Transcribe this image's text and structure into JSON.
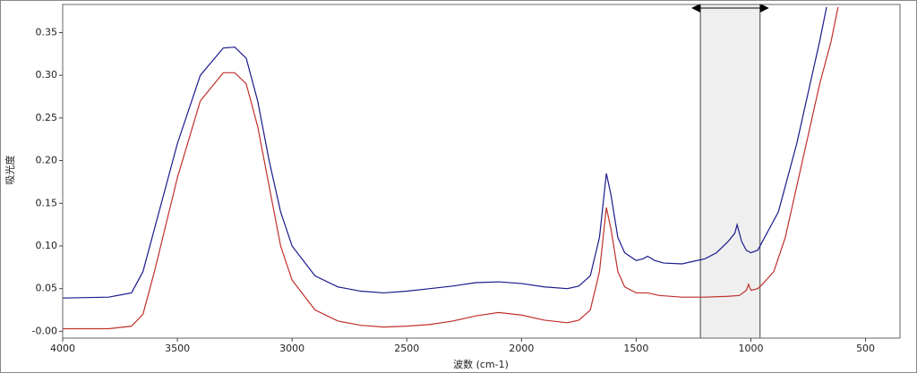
{
  "chart_data": {
    "type": "line",
    "y_label": "吸光度",
    "x_label": "波数 (cm-1)",
    "xlim": [
      4000,
      350
    ],
    "ylim": [
      -0.008,
      0.383
    ],
    "xticks": [
      4000,
      3500,
      3000,
      2500,
      2000,
      1500,
      1000,
      500
    ],
    "yticks": [
      {
        "value": 0,
        "label": "-0.00"
      },
      0.05,
      {
        "value": 0.1,
        "label": "0.10"
      },
      0.15,
      {
        "value": 0.2,
        "label": "0.20"
      },
      0.25,
      {
        "value": 0.3,
        "label": "0.30"
      },
      0.35
    ],
    "selection": [
      1220,
      960
    ],
    "series": [
      {
        "color": "#1a1a8c",
        "x": [
          4000,
          3800,
          3700,
          3650,
          3600,
          3500,
          3400,
          3300,
          3250,
          3200,
          3150,
          3100,
          3050,
          3000,
          2900,
          2800,
          2700,
          2600,
          2500,
          2400,
          2300,
          2200,
          2100,
          2000,
          1900,
          1800,
          1750,
          1700,
          1660,
          1630,
          1610,
          1580,
          1550,
          1500,
          1470,
          1450,
          1420,
          1380,
          1300,
          1250,
          1200,
          1150,
          1100,
          1070,
          1060,
          1040,
          1020,
          1000,
          970,
          950,
          920,
          880,
          850,
          800,
          750,
          700,
          670
        ],
        "values": [
          0.039,
          0.04,
          0.045,
          0.07,
          0.12,
          0.22,
          0.3,
          0.332,
          0.333,
          0.32,
          0.27,
          0.2,
          0.14,
          0.1,
          0.065,
          0.052,
          0.047,
          0.045,
          0.047,
          0.05,
          0.053,
          0.057,
          0.058,
          0.056,
          0.052,
          0.05,
          0.053,
          0.065,
          0.11,
          0.185,
          0.16,
          0.11,
          0.092,
          0.083,
          0.085,
          0.088,
          0.083,
          0.08,
          0.079,
          0.082,
          0.085,
          0.092,
          0.105,
          0.115,
          0.125,
          0.105,
          0.095,
          0.092,
          0.095,
          0.105,
          0.12,
          0.14,
          0.17,
          0.22,
          0.28,
          0.34,
          0.38
        ]
      },
      {
        "color": "#c0302a",
        "x": [
          4000,
          3800,
          3700,
          3650,
          3600,
          3500,
          3400,
          3300,
          3250,
          3200,
          3150,
          3100,
          3050,
          3000,
          2900,
          2800,
          2700,
          2600,
          2500,
          2400,
          2300,
          2200,
          2100,
          2000,
          1900,
          1800,
          1750,
          1700,
          1660,
          1630,
          1610,
          1580,
          1550,
          1500,
          1450,
          1400,
          1300,
          1200,
          1100,
          1050,
          1020,
          1010,
          1000,
          970,
          950,
          900,
          850,
          800,
          750,
          700,
          650,
          620
        ],
        "values": [
          0.003,
          0.003,
          0.006,
          0.02,
          0.07,
          0.18,
          0.27,
          0.303,
          0.303,
          0.29,
          0.24,
          0.17,
          0.1,
          0.06,
          0.025,
          0.012,
          0.007,
          0.005,
          0.006,
          0.008,
          0.012,
          0.018,
          0.022,
          0.019,
          0.013,
          0.01,
          0.013,
          0.025,
          0.07,
          0.145,
          0.12,
          0.07,
          0.052,
          0.045,
          0.045,
          0.042,
          0.04,
          0.04,
          0.041,
          0.042,
          0.048,
          0.055,
          0.048,
          0.05,
          0.055,
          0.07,
          0.11,
          0.17,
          0.23,
          0.29,
          0.34,
          0.38
        ]
      }
    ]
  }
}
